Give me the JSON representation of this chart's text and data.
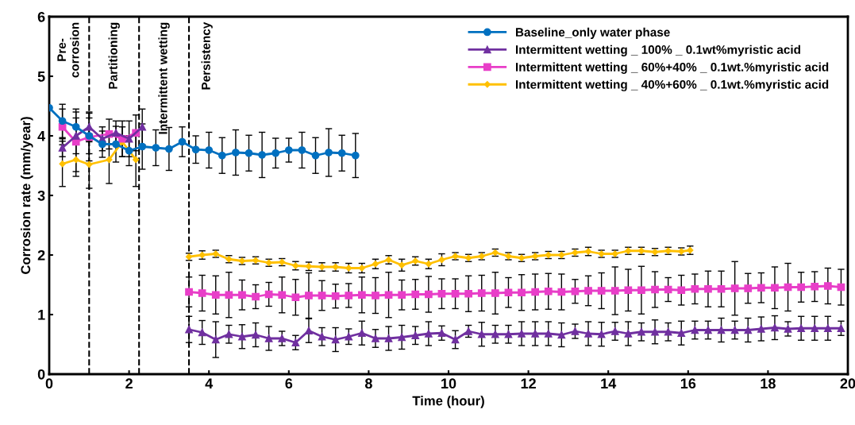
{
  "chart_data": {
    "type": "line",
    "xlabel": "Time (hour)",
    "ylabel": "Corrosion rate (mm/year)",
    "xlim": [
      0,
      20
    ],
    "xticks": [
      0,
      2,
      4,
      6,
      8,
      10,
      12,
      14,
      16,
      18,
      20
    ],
    "ylim": [
      0,
      6
    ],
    "yticks": [
      0,
      1,
      2,
      3,
      4,
      5,
      6
    ],
    "grid": false,
    "legend": "top right",
    "ref_lines": [
      {
        "axis": "x",
        "value": 1,
        "color": "#000000",
        "line_style": "dashed"
      },
      {
        "axis": "x",
        "value": 2.25,
        "color": "#000000",
        "line_style": "dashed"
      },
      {
        "axis": "x",
        "value": 3.5,
        "color": "#000000",
        "line_style": "dashed"
      }
    ],
    "annotations": [
      "Pre-\ncorrosion",
      "Partitioning",
      "Intermittent wetting",
      "Persistency"
    ],
    "series": [
      {
        "name": "Baseline_only water phase",
        "color": "#0070c0",
        "marker": "circle",
        "x": [
          0,
          0.33,
          0.67,
          1,
          1.33,
          1.67,
          2,
          2.33,
          2.67,
          3,
          3.33,
          3.67,
          4,
          4.33,
          4.67,
          5,
          5.33,
          5.67,
          6,
          6.33,
          6.67,
          7,
          7.33,
          7.67
        ],
        "values": [
          4.47,
          4.25,
          4.15,
          4.0,
          3.86,
          3.86,
          3.75,
          3.82,
          3.8,
          3.78,
          3.9,
          3.77,
          3.76,
          3.67,
          3.72,
          3.71,
          3.68,
          3.71,
          3.76,
          3.76,
          3.67,
          3.72,
          3.71,
          3.67
        ],
        "errors": [
          null,
          0.28,
          0.3,
          0.3,
          0.22,
          0.3,
          0.25,
          0.38,
          0.3,
          0.36,
          0.25,
          0.23,
          0.3,
          0.3,
          0.38,
          0.3,
          0.38,
          0.25,
          0.2,
          0.3,
          0.3,
          0.4,
          0.3,
          0.37
        ]
      },
      {
        "name": "Intermittent wetting _ 100% _ 0.1wt%myristic acid",
        "color": "#7030a0",
        "marker": "triangle",
        "x": [
          0.33,
          0.67,
          1,
          1.33,
          1.67,
          2,
          2.33,
          2.9,
          3.5,
          3.83,
          4.17,
          4.5,
          4.83,
          5.17,
          5.5,
          5.83,
          6.17,
          6.5,
          6.83,
          7.17,
          7.5,
          7.83,
          8.17,
          8.5,
          8.83,
          9.17,
          9.5,
          9.83,
          10.17,
          10.5,
          10.83,
          11.17,
          11.5,
          11.83,
          12.17,
          12.5,
          12.83,
          13.17,
          13.5,
          13.83,
          14.17,
          14.5,
          14.83,
          15.17,
          15.5,
          15.83,
          16.17,
          16.5,
          16.83,
          17.17,
          17.5,
          17.83,
          18.17,
          18.5,
          18.83,
          19.17,
          19.5,
          19.83
        ],
        "values": [
          3.8,
          4.0,
          4.15,
          3.95,
          4.05,
          3.95,
          4.15,
          null,
          0.75,
          0.7,
          0.58,
          0.67,
          0.63,
          0.66,
          0.6,
          0.6,
          0.53,
          0.73,
          0.63,
          0.58,
          0.63,
          0.69,
          0.6,
          0.6,
          0.62,
          0.65,
          0.68,
          0.69,
          0.58,
          0.72,
          0.67,
          0.67,
          0.67,
          0.68,
          0.68,
          0.68,
          0.66,
          0.72,
          0.68,
          0.67,
          0.72,
          0.68,
          0.71,
          0.71,
          0.71,
          0.69,
          0.74,
          0.74,
          0.74,
          0.74,
          0.74,
          0.76,
          0.78,
          0.76,
          0.77,
          0.77,
          0.77,
          0.77
        ],
        "errors": [
          0.15,
          0.3,
          0.25,
          0.2,
          0.2,
          0.3,
          0.3,
          null,
          0.22,
          0.2,
          0.3,
          0.15,
          0.2,
          0.2,
          0.2,
          0.12,
          0.12,
          0.2,
          0.15,
          0.2,
          0.13,
          0.2,
          0.15,
          0.2,
          0.2,
          0.15,
          0.2,
          0.12,
          0.15,
          0.1,
          0.2,
          0.15,
          0.15,
          0.2,
          0.2,
          0.2,
          0.2,
          0.12,
          0.2,
          0.2,
          0.15,
          0.2,
          0.15,
          0.2,
          0.15,
          0.2,
          0.15,
          0.15,
          0.2,
          0.15,
          0.2,
          0.2,
          0.2,
          0.12,
          0.2,
          0.2,
          0.2,
          0.12
        ]
      },
      {
        "name": "Intermittent wetting _ 60%+40% _ 0.1wt.%myristic acid",
        "color": "#e83ec8",
        "marker": "square",
        "x": [
          0.33,
          0.67,
          1,
          1.5,
          1.83,
          2.17,
          2.9,
          3.5,
          3.83,
          4.17,
          4.5,
          4.83,
          5.17,
          5.5,
          5.83,
          6.17,
          6.5,
          6.83,
          7.17,
          7.5,
          7.83,
          8.17,
          8.5,
          8.83,
          9.17,
          9.5,
          9.83,
          10.17,
          10.5,
          10.83,
          11.17,
          11.5,
          11.83,
          12.17,
          12.5,
          12.83,
          13.17,
          13.5,
          13.83,
          14.17,
          14.5,
          14.83,
          15.17,
          15.5,
          15.83,
          16.17,
          16.5,
          16.83,
          17.17,
          17.5,
          17.83,
          18.17,
          18.5,
          18.83,
          19.17,
          19.5,
          19.83
        ],
        "values": [
          4.15,
          3.9,
          3.98,
          4.03,
          3.95,
          4.05,
          null,
          1.38,
          1.36,
          1.33,
          1.33,
          1.33,
          1.3,
          1.34,
          1.33,
          1.29,
          1.32,
          1.32,
          1.31,
          1.32,
          1.33,
          1.32,
          1.33,
          1.33,
          1.34,
          1.34,
          1.35,
          1.35,
          1.35,
          1.36,
          1.36,
          1.37,
          1.37,
          1.38,
          1.39,
          1.38,
          1.39,
          1.4,
          1.4,
          1.4,
          1.41,
          1.41,
          1.42,
          1.42,
          1.41,
          1.43,
          1.43,
          1.43,
          1.44,
          1.44,
          1.45,
          1.45,
          1.46,
          1.46,
          1.47,
          1.48,
          1.46
        ],
        "errors": [
          0.3,
          0.5,
          0.4,
          0.25,
          0.3,
          0.3,
          null,
          0.25,
          0.3,
          0.32,
          0.38,
          0.25,
          0.2,
          0.2,
          0.3,
          0.3,
          0.38,
          0.25,
          0.2,
          0.2,
          0.3,
          0.3,
          0.38,
          0.25,
          0.25,
          0.3,
          0.25,
          0.25,
          0.3,
          0.3,
          0.35,
          0.25,
          0.3,
          0.3,
          0.3,
          0.3,
          0.2,
          0.25,
          0.3,
          0.4,
          0.35,
          0.4,
          0.3,
          0.2,
          0.25,
          0.25,
          0.3,
          0.3,
          0.45,
          0.25,
          0.25,
          0.35,
          0.4,
          0.25,
          0.25,
          0.3,
          0.3
        ]
      },
      {
        "name": "Intermittent wetting _ 40%+60% _ 0.1wt.%myristic acid",
        "color": "#ffc000",
        "marker": "diamond",
        "x": [
          0.33,
          0.67,
          1,
          1.5,
          1.83,
          2.17,
          2.9,
          3.5,
          3.83,
          4.17,
          4.5,
          4.83,
          5.17,
          5.5,
          5.83,
          6.17,
          6.5,
          6.83,
          7.17,
          7.5,
          7.83,
          8.17,
          8.5,
          8.83,
          9.17,
          9.5,
          9.83,
          10.17,
          10.5,
          10.83,
          11.17,
          11.5,
          11.83,
          12.17,
          12.5,
          12.83,
          13.17,
          13.5,
          13.83,
          14.17,
          14.5,
          14.83,
          15.17,
          15.5,
          15.83,
          16.05
        ],
        "values": [
          3.53,
          3.6,
          3.52,
          3.6,
          3.9,
          3.6,
          null,
          1.97,
          2.0,
          2.02,
          1.93,
          1.9,
          1.91,
          1.87,
          1.88,
          1.82,
          1.81,
          1.8,
          1.8,
          1.78,
          1.78,
          1.85,
          1.92,
          1.83,
          1.9,
          1.85,
          1.92,
          1.98,
          1.95,
          1.98,
          2.04,
          1.98,
          1.95,
          1.98,
          2.0,
          2.0,
          2.04,
          2.06,
          2.02,
          2.02,
          2.07,
          2.07,
          2.05,
          2.07,
          2.06,
          2.08
        ],
        "errors": [
          0.38,
          0.28,
          0.4,
          0.4,
          0.25,
          0.45,
          null,
          0.06,
          0.07,
          0.06,
          0.06,
          0.06,
          0.06,
          0.06,
          0.06,
          0.07,
          0.07,
          0.07,
          0.07,
          0.08,
          0.08,
          0.08,
          0.07,
          0.1,
          0.07,
          0.08,
          0.1,
          0.06,
          0.06,
          0.06,
          0.06,
          0.06,
          0.06,
          0.06,
          0.06,
          0.06,
          0.06,
          0.07,
          0.06,
          0.06,
          0.06,
          0.06,
          0.06,
          0.06,
          0.06,
          0.07
        ]
      }
    ]
  }
}
